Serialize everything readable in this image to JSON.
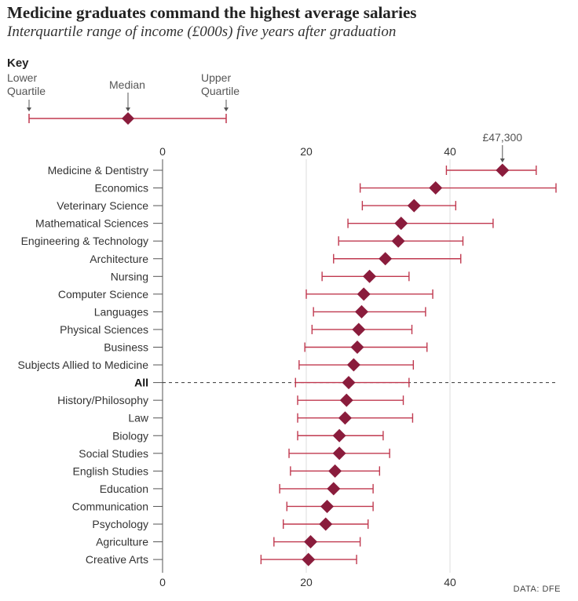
{
  "title": "Medicine graduates command the highest average salaries",
  "subtitle": "Interquartile range of income (£000s) five years after graduation",
  "key": {
    "title": "Key",
    "lower_line1": "Lower",
    "lower_line2": "Quartile",
    "median": "Median",
    "upper_line1": "Upper",
    "upper_line2": "Quartile"
  },
  "source": "DATA: DFE",
  "colors": {
    "marker": "#8a1c3c",
    "whisker": "#c0394f",
    "grid": "#dddddd",
    "text": "#333333"
  },
  "chart_data": {
    "type": "range-dot",
    "title": "Medicine graduates command the highest average salaries",
    "subtitle": "Interquartile range of income (£000s) five years after graduation",
    "xlabel": "",
    "xlim": [
      0,
      55
    ],
    "x_ticks": [
      0,
      20,
      40
    ],
    "grid": true,
    "annotation": {
      "label": "£47,300",
      "category": "Medicine & Dentistry"
    },
    "dashed_row": "All",
    "categories": [
      "Medicine & Dentistry",
      "Economics",
      "Veterinary Science",
      "Mathematical Sciences",
      "Engineering & Technology",
      "Architecture",
      "Nursing",
      "Computer Science",
      "Languages",
      "Physical Sciences",
      "Business",
      "Subjects Allied to Medicine",
      "All",
      "History/Philosophy",
      "Law",
      "Biology",
      "Social Studies",
      "English Studies",
      "Education",
      "Communication",
      "Psychology",
      "Agriculture",
      "Creative Arts"
    ],
    "series": [
      {
        "name": "Lower Quartile",
        "values": [
          39.5,
          27.5,
          27.8,
          25.8,
          24.5,
          23.8,
          22.2,
          20.0,
          21.0,
          20.8,
          19.8,
          19.0,
          18.5,
          18.8,
          18.8,
          18.8,
          17.6,
          17.8,
          16.3,
          17.3,
          16.8,
          15.5,
          13.7
        ]
      },
      {
        "name": "Median",
        "values": [
          47.3,
          38.0,
          35.0,
          33.2,
          32.8,
          31.0,
          28.8,
          28.0,
          27.7,
          27.3,
          27.1,
          26.6,
          25.9,
          25.6,
          25.4,
          24.6,
          24.6,
          24.0,
          23.8,
          22.9,
          22.7,
          20.6,
          20.3
        ]
      },
      {
        "name": "Upper Quartile",
        "values": [
          52.0,
          55.0,
          40.8,
          46.0,
          41.8,
          41.5,
          34.3,
          37.6,
          36.6,
          34.7,
          36.8,
          34.9,
          34.3,
          33.5,
          34.8,
          30.7,
          31.6,
          30.2,
          29.3,
          29.3,
          28.6,
          27.5,
          27.0
        ]
      }
    ]
  }
}
